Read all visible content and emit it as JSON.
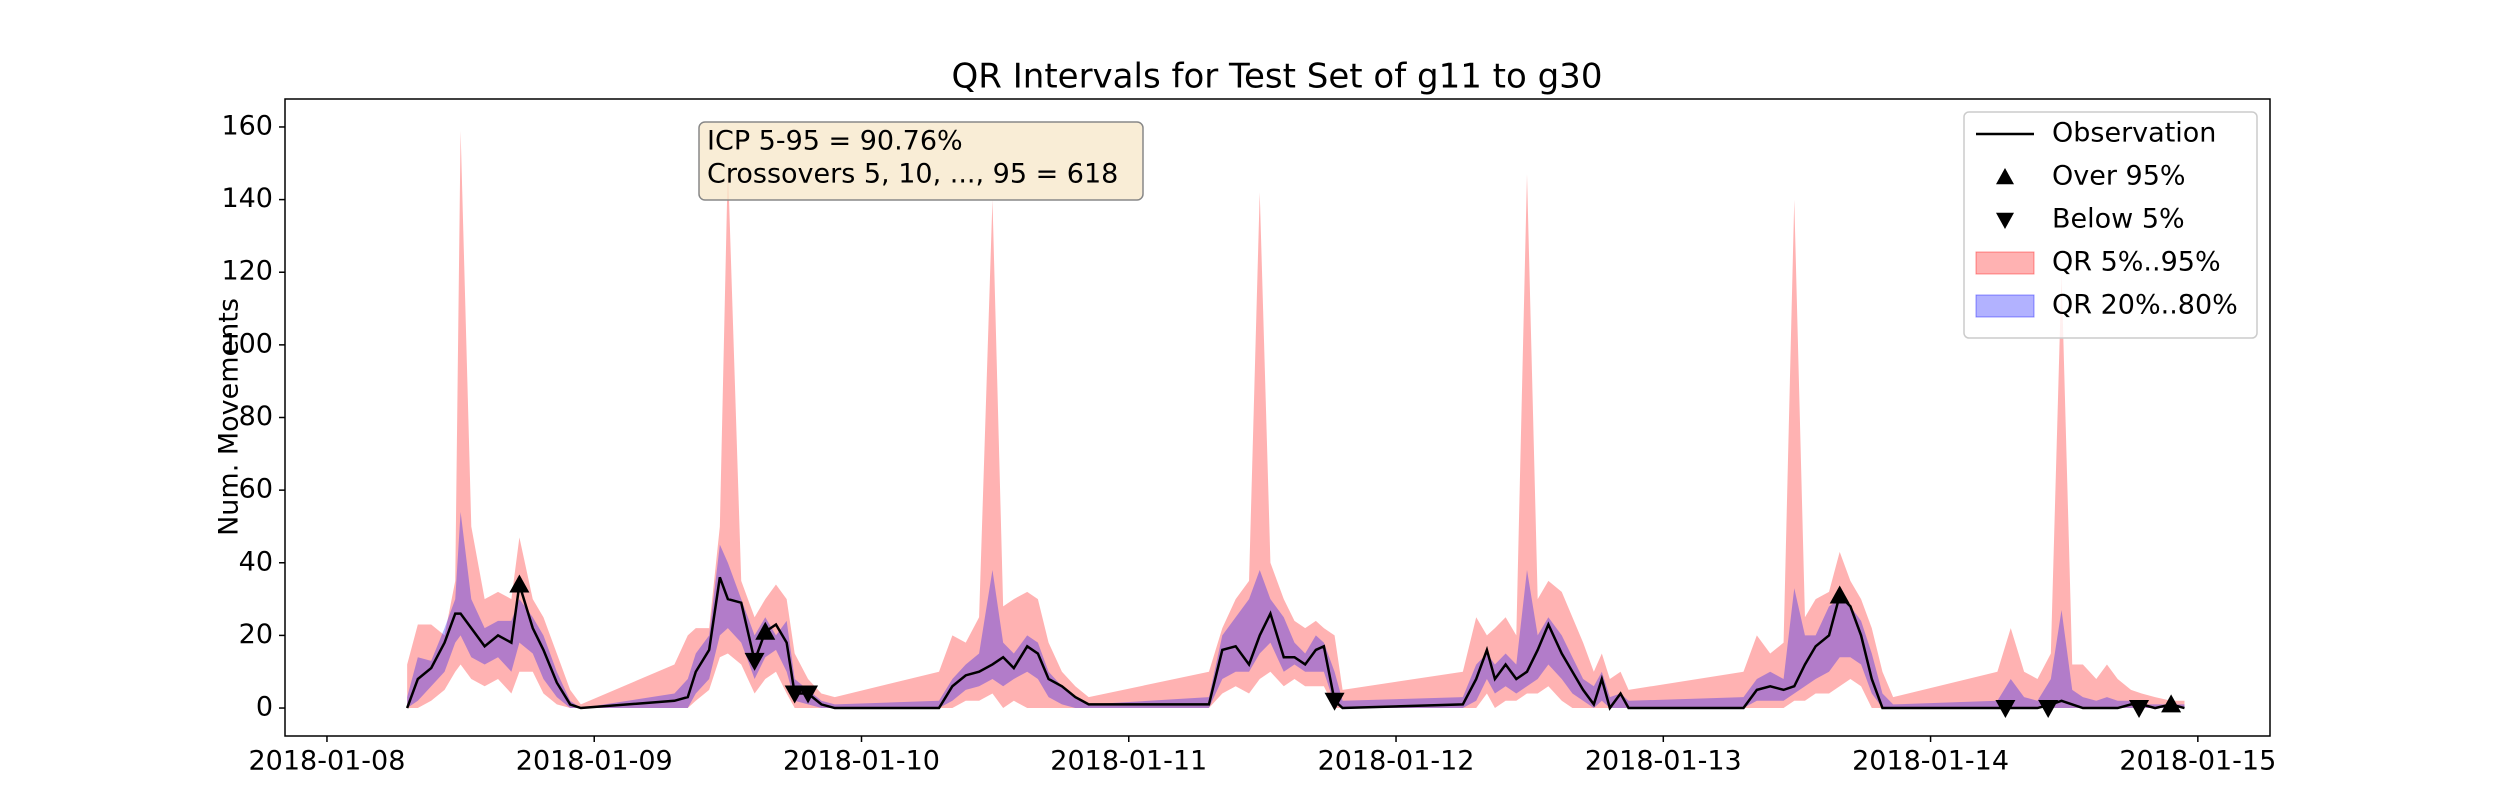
{
  "chart_data": {
    "type": "band-line",
    "title": "QR Intervals for Test Set of g11 to g30",
    "ylabel": "Num. Movements",
    "annotation": [
      "ICP 5-95 = 90.76%",
      "Crossovers 5, 10, ..., 95 = 618"
    ],
    "legend": "upper right",
    "xlim": [
      7.843,
      15.27
    ],
    "ylim": [
      -7.7,
      167.7
    ],
    "xticks": [
      {
        "value": 8,
        "label": "2018-01-08"
      },
      {
        "value": 9,
        "label": "2018-01-09"
      },
      {
        "value": 10,
        "label": "2018-01-10"
      },
      {
        "value": 11,
        "label": "2018-01-11"
      },
      {
        "value": 12,
        "label": "2018-01-12"
      },
      {
        "value": 13,
        "label": "2018-01-13"
      },
      {
        "value": 14,
        "label": "2018-01-14"
      },
      {
        "value": 15,
        "label": "2018-01-15"
      }
    ],
    "yticks": [
      0,
      20,
      40,
      60,
      80,
      100,
      120,
      140,
      160
    ],
    "x": [
      8.3,
      8.34,
      8.39,
      8.44,
      8.48,
      8.5,
      8.54,
      8.59,
      8.64,
      8.69,
      8.72,
      8.77,
      8.81,
      8.86,
      8.91,
      8.95,
      9.3,
      9.35,
      9.38,
      9.43,
      9.47,
      9.5,
      9.55,
      9.6,
      9.64,
      9.68,
      9.72,
      9.75,
      9.8,
      9.85,
      9.9,
      10.29,
      10.34,
      10.39,
      10.44,
      10.49,
      10.53,
      10.57,
      10.62,
      10.66,
      10.7,
      10.75,
      10.8,
      10.85,
      11.3,
      11.35,
      11.4,
      11.45,
      11.49,
      11.53,
      11.58,
      11.62,
      11.66,
      11.7,
      11.73,
      11.77,
      11.8,
      12.25,
      12.3,
      12.34,
      12.37,
      12.41,
      12.45,
      12.49,
      12.53,
      12.57,
      12.62,
      12.66,
      12.7,
      12.74,
      12.77,
      12.8,
      12.84,
      12.87,
      13.3,
      13.35,
      13.4,
      13.45,
      13.49,
      13.53,
      13.57,
      13.62,
      13.66,
      13.7,
      13.74,
      13.78,
      13.82,
      13.86,
      14.25,
      14.3,
      14.35,
      14.4,
      14.45,
      14.49,
      14.53,
      14.57,
      14.62,
      14.66,
      14.7,
      14.75,
      14.79,
      14.84,
      14.9,
      14.95
    ],
    "bands": [
      {
        "name": "QR 5%..95%",
        "color": "#ff0000",
        "opacity": 0.3,
        "lower": [
          0,
          0,
          2,
          5,
          10,
          12,
          8,
          6,
          8,
          4,
          10,
          10,
          4,
          1,
          0,
          0,
          0,
          0,
          2,
          5,
          14,
          15,
          12,
          4,
          8,
          10,
          4,
          0,
          0,
          0,
          0,
          0,
          0,
          2,
          2,
          4,
          0,
          2,
          0,
          0,
          0,
          0,
          0,
          0,
          0,
          4,
          6,
          4,
          8,
          10,
          6,
          8,
          6,
          6,
          6,
          0,
          0,
          0,
          0,
          4,
          0,
          2,
          2,
          4,
          4,
          6,
          2,
          0,
          0,
          0,
          0,
          0,
          0,
          0,
          0,
          0,
          0,
          0,
          2,
          2,
          4,
          4,
          6,
          8,
          6,
          0,
          0,
          0,
          0,
          0,
          0,
          0,
          0,
          0,
          0,
          0,
          0,
          0,
          0,
          0,
          0,
          0,
          0,
          0
        ],
        "upper": [
          12,
          23,
          23,
          20,
          35,
          159,
          50,
          30,
          32,
          30,
          47,
          30,
          25,
          15,
          5,
          1,
          12,
          20,
          22,
          22,
          50,
          150,
          35,
          25,
          30,
          34,
          30,
          15,
          8,
          4,
          3,
          10,
          20,
          18,
          25,
          140,
          28,
          30,
          32,
          30,
          18,
          10,
          6,
          3,
          10,
          22,
          30,
          35,
          142,
          40,
          30,
          24,
          22,
          24,
          22,
          20,
          5,
          10,
          25,
          20,
          22,
          25,
          20,
          147,
          30,
          35,
          32,
          25,
          18,
          10,
          15,
          8,
          10,
          5,
          10,
          20,
          15,
          18,
          140,
          25,
          30,
          32,
          43,
          35,
          30,
          22,
          10,
          3,
          10,
          22,
          10,
          8,
          15,
          120,
          12,
          12,
          8,
          12,
          8,
          5,
          4,
          3,
          2,
          2
        ]
      },
      {
        "name": "QR 20%..80%",
        "color": "#0000ff",
        "opacity": 0.3,
        "lower": [
          0,
          2,
          6,
          10,
          18,
          20,
          14,
          12,
          14,
          10,
          18,
          15,
          8,
          3,
          0,
          0,
          0,
          0,
          4,
          8,
          20,
          22,
          18,
          8,
          14,
          16,
          10,
          2,
          1,
          0,
          0,
          0,
          2,
          5,
          6,
          8,
          6,
          8,
          10,
          8,
          3,
          1,
          0,
          0,
          0,
          8,
          10,
          10,
          15,
          18,
          10,
          12,
          10,
          10,
          10,
          1,
          0,
          0,
          2,
          8,
          4,
          6,
          4,
          6,
          8,
          12,
          8,
          4,
          2,
          0,
          2,
          0,
          0,
          0,
          0,
          2,
          2,
          2,
          4,
          6,
          8,
          10,
          14,
          14,
          12,
          4,
          0,
          0,
          0,
          0,
          0,
          0,
          0,
          0,
          0,
          0,
          0,
          0,
          0,
          0,
          0,
          0,
          0,
          0
        ],
        "upper": [
          3,
          14,
          13,
          22,
          30,
          54,
          30,
          22,
          24,
          24,
          30,
          25,
          20,
          10,
          2,
          0,
          4,
          8,
          15,
          20,
          45,
          40,
          30,
          20,
          25,
          20,
          24,
          8,
          5,
          2,
          1,
          2,
          8,
          12,
          15,
          38,
          18,
          15,
          20,
          18,
          10,
          6,
          3,
          1,
          3,
          20,
          25,
          30,
          38,
          30,
          25,
          18,
          15,
          20,
          18,
          10,
          2,
          3,
          12,
          15,
          12,
          15,
          12,
          38,
          20,
          25,
          20,
          14,
          8,
          6,
          10,
          3,
          4,
          2,
          3,
          8,
          10,
          8,
          33,
          20,
          20,
          28,
          30,
          28,
          24,
          15,
          4,
          1,
          2,
          8,
          3,
          2,
          8,
          27,
          5,
          3,
          2,
          3,
          2,
          2,
          1,
          1,
          1,
          1
        ]
      }
    ],
    "series": [
      {
        "name": "Observation",
        "color": "#000000",
        "values": [
          0,
          8,
          11,
          18,
          26,
          26,
          22,
          17,
          20,
          18,
          34,
          22,
          16,
          7,
          1,
          0,
          2,
          3,
          10,
          16,
          36,
          30,
          29,
          13,
          21,
          23,
          18,
          4,
          4,
          1,
          0,
          0,
          6,
          9,
          10,
          12,
          14,
          11,
          17,
          15,
          8,
          6,
          3,
          1,
          1,
          16,
          17,
          12,
          20,
          26,
          14,
          14,
          12,
          16,
          17,
          2,
          0,
          1,
          8,
          16,
          8,
          12,
          8,
          10,
          16,
          23,
          15,
          10,
          5,
          1,
          8,
          0,
          4,
          0,
          0,
          5,
          6,
          5,
          6,
          12,
          17,
          20,
          31,
          28,
          20,
          8,
          0,
          0,
          0,
          0,
          0,
          0,
          1,
          2,
          1,
          0,
          0,
          0,
          0,
          1,
          1,
          0,
          1,
          0
        ]
      }
    ],
    "markers": [
      {
        "name": "Over 95%",
        "symbol": "up",
        "x": [
          8.72,
          9.64,
          13.66,
          14.9
        ],
        "values": [
          34,
          21,
          31,
          1
        ]
      },
      {
        "name": "Below 5%",
        "symbol": "down",
        "x": [
          9.6,
          9.75,
          9.8,
          11.77,
          14.28,
          14.44,
          14.78
        ],
        "values": [
          13,
          4,
          4,
          2,
          0,
          0,
          0
        ]
      }
    ]
  }
}
